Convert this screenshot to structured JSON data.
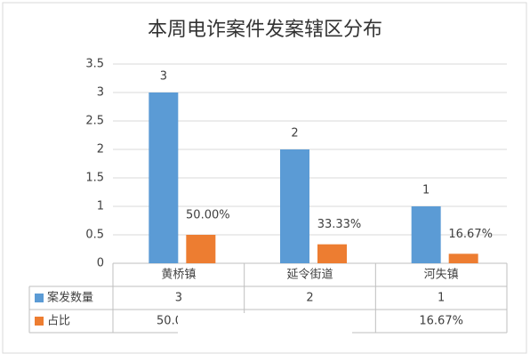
{
  "chart_data": {
    "type": "bar",
    "title": "本周电诈案件发案辖区分布",
    "categories": [
      "黄桥镇",
      "延令街道",
      "河失镇"
    ],
    "series": [
      {
        "name": "案发数量",
        "color": "#5b9bd5",
        "values": [
          3,
          2,
          1
        ]
      },
      {
        "name": "占比",
        "color": "#ed7d31",
        "values": [
          0.5,
          0.3333,
          0.1667
        ],
        "value_labels": [
          "50.00%",
          "33.33%",
          "16.67%"
        ]
      }
    ],
    "ylim": [
      0,
      3.5
    ],
    "yticks": [
      0,
      0.5,
      1,
      1.5,
      2,
      2.5,
      3,
      3.5
    ],
    "grid": true,
    "data_table": true
  }
}
